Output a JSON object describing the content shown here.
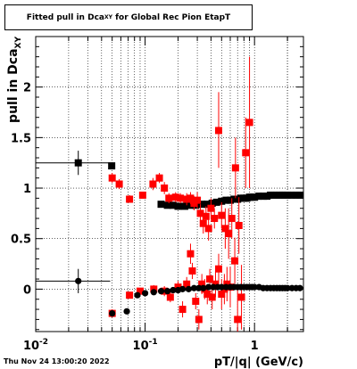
{
  "chart_data": {
    "type": "scatter",
    "title_main": "Fitted pull in Dca",
    "title_sub": "XY",
    "title_rest": " for Global Rec Pion EtapT",
    "ylabel_main": "pull in Dca",
    "ylabel_sub": "XY",
    "xlabel": "pT/|q| (GeV/c)",
    "xscale": "log",
    "xlim": [
      0.01,
      2.8
    ],
    "ylim": [
      -0.42,
      2.5
    ],
    "grid": true,
    "x_tick_labels": [
      {
        "x": 0.01,
        "base": "10",
        "exp": "-2"
      },
      {
        "x": 0.1,
        "base": "10",
        "exp": "-1"
      },
      {
        "x": 1,
        "base": "1",
        "exp": ""
      }
    ],
    "y_ticks": [
      0,
      0.5,
      1,
      1.5,
      2
    ],
    "y_tick_labels": [
      "0",
      "0.5",
      "1",
      "1.5",
      "2"
    ],
    "series": [
      {
        "color": "#000000",
        "marker": "square",
        "points": [
          {
            "x": 0.0245,
            "y": 1.25,
            "xlo": 0.01,
            "xhi": 0.048,
            "ylo": 1.13,
            "yhi": 1.37
          },
          {
            "x": 0.0495,
            "y": 1.22,
            "xlo": 0.048,
            "xhi": 0.051,
            "ylo": 1.19,
            "yhi": 1.25
          },
          {
            "x": 0.14,
            "y": 0.84
          },
          {
            "x": 0.16,
            "y": 0.83
          },
          {
            "x": 0.18,
            "y": 0.83
          },
          {
            "x": 0.2,
            "y": 0.82
          },
          {
            "x": 0.23,
            "y": 0.82
          },
          {
            "x": 0.26,
            "y": 0.83
          },
          {
            "x": 0.29,
            "y": 0.83
          },
          {
            "x": 0.33,
            "y": 0.84
          },
          {
            "x": 0.37,
            "y": 0.84
          },
          {
            "x": 0.41,
            "y": 0.85
          },
          {
            "x": 0.45,
            "y": 0.86
          },
          {
            "x": 0.5,
            "y": 0.87
          },
          {
            "x": 0.55,
            "y": 0.88
          },
          {
            "x": 0.6,
            "y": 0.88
          },
          {
            "x": 0.65,
            "y": 0.89
          },
          {
            "x": 0.7,
            "y": 0.89
          },
          {
            "x": 0.75,
            "y": 0.9
          },
          {
            "x": 0.8,
            "y": 0.9
          },
          {
            "x": 0.85,
            "y": 0.9
          },
          {
            "x": 0.9,
            "y": 0.91
          },
          {
            "x": 0.95,
            "y": 0.91
          },
          {
            "x": 1.0,
            "y": 0.91
          },
          {
            "x": 1.1,
            "y": 0.92
          },
          {
            "x": 1.2,
            "y": 0.92
          },
          {
            "x": 1.3,
            "y": 0.92
          },
          {
            "x": 1.4,
            "y": 0.93
          },
          {
            "x": 1.5,
            "y": 0.93
          },
          {
            "x": 1.6,
            "y": 0.93
          },
          {
            "x": 1.7,
            "y": 0.93
          },
          {
            "x": 1.8,
            "y": 0.93
          },
          {
            "x": 1.9,
            "y": 0.93
          },
          {
            "x": 2.0,
            "y": 0.93
          },
          {
            "x": 2.2,
            "y": 0.93
          },
          {
            "x": 2.4,
            "y": 0.93
          },
          {
            "x": 2.6,
            "y": 0.93
          }
        ]
      },
      {
        "color": "#ff0000",
        "marker": "square",
        "points": [
          {
            "x": 0.05,
            "y": 1.1,
            "ylo": 1.05,
            "yhi": 1.15
          },
          {
            "x": 0.058,
            "y": 1.04,
            "ylo": 0.99,
            "yhi": 1.09
          },
          {
            "x": 0.072,
            "y": 0.89,
            "ylo": 0.86,
            "yhi": 0.93
          },
          {
            "x": 0.095,
            "y": 0.93,
            "ylo": 0.9,
            "yhi": 0.96
          },
          {
            "x": 0.118,
            "y": 1.04,
            "ylo": 0.98,
            "yhi": 1.1
          },
          {
            "x": 0.135,
            "y": 1.1,
            "ylo": 1.05,
            "yhi": 1.15
          },
          {
            "x": 0.15,
            "y": 1.0,
            "ylo": 0.94,
            "yhi": 1.06
          },
          {
            "x": 0.165,
            "y": 0.9,
            "ylo": 0.85,
            "yhi": 0.95
          },
          {
            "x": 0.19,
            "y": 0.91,
            "ylo": 0.86,
            "yhi": 0.96
          },
          {
            "x": 0.21,
            "y": 0.9,
            "ylo": 0.85,
            "yhi": 0.95
          },
          {
            "x": 0.24,
            "y": 0.89,
            "ylo": 0.83,
            "yhi": 0.95
          },
          {
            "x": 0.26,
            "y": 0.9,
            "ylo": 0.84,
            "yhi": 0.96
          },
          {
            "x": 0.28,
            "y": 0.85,
            "ylo": 0.78,
            "yhi": 0.92
          },
          {
            "x": 0.3,
            "y": 0.88,
            "ylo": 0.8,
            "yhi": 0.96
          },
          {
            "x": 0.32,
            "y": 0.75,
            "ylo": 0.66,
            "yhi": 0.84
          },
          {
            "x": 0.34,
            "y": 0.65,
            "ylo": 0.55,
            "yhi": 0.75
          },
          {
            "x": 0.36,
            "y": 0.72,
            "ylo": 0.62,
            "yhi": 0.82
          },
          {
            "x": 0.38,
            "y": 0.6,
            "ylo": 0.48,
            "yhi": 0.72
          },
          {
            "x": 0.4,
            "y": 0.8,
            "ylo": 0.7,
            "yhi": 0.9
          },
          {
            "x": 0.43,
            "y": 0.7,
            "ylo": 0.6,
            "yhi": 0.8
          },
          {
            "x": 0.47,
            "y": 1.57,
            "ylo": 1.2,
            "yhi": 1.95
          },
          {
            "x": 0.5,
            "y": 0.73,
            "ylo": 0.6,
            "yhi": 0.86
          },
          {
            "x": 0.54,
            "y": 0.6,
            "ylo": 0.4,
            "yhi": 0.8
          },
          {
            "x": 0.58,
            "y": 0.55,
            "ylo": 0.3,
            "yhi": 0.8
          },
          {
            "x": 0.62,
            "y": 0.7,
            "ylo": 0.5,
            "yhi": 0.9
          },
          {
            "x": 0.67,
            "y": 1.2,
            "ylo": 0.9,
            "yhi": 1.5
          },
          {
            "x": 0.72,
            "y": 0.63,
            "ylo": 0.35,
            "yhi": 0.91
          },
          {
            "x": 0.83,
            "y": 1.35,
            "ylo": 1.0,
            "yhi": 1.7
          },
          {
            "x": 0.9,
            "y": 1.65,
            "ylo": 1.0,
            "yhi": 2.3
          },
          {
            "x": 0.05,
            "y": -0.24,
            "ylo": -0.28,
            "yhi": -0.2
          },
          {
            "x": 0.072,
            "y": -0.06,
            "ylo": -0.09,
            "yhi": -0.03
          },
          {
            "x": 0.09,
            "y": -0.02,
            "ylo": -0.05,
            "yhi": 0.01
          },
          {
            "x": 0.12,
            "y": 0.0,
            "ylo": -0.04,
            "yhi": 0.04
          },
          {
            "x": 0.15,
            "y": -0.02,
            "ylo": -0.07,
            "yhi": 0.03
          },
          {
            "x": 0.17,
            "y": -0.08,
            "ylo": -0.13,
            "yhi": -0.03
          },
          {
            "x": 0.2,
            "y": 0.02,
            "ylo": -0.04,
            "yhi": 0.08
          },
          {
            "x": 0.22,
            "y": -0.2,
            "ylo": -0.28,
            "yhi": -0.12
          },
          {
            "x": 0.24,
            "y": 0.05,
            "ylo": -0.02,
            "yhi": 0.12
          },
          {
            "x": 0.26,
            "y": 0.35,
            "ylo": 0.25,
            "yhi": 0.45
          },
          {
            "x": 0.27,
            "y": 0.18,
            "ylo": 0.1,
            "yhi": 0.26
          },
          {
            "x": 0.29,
            "y": -0.12,
            "ylo": -0.2,
            "yhi": -0.04
          },
          {
            "x": 0.31,
            "y": -0.3,
            "ylo": -0.4,
            "yhi": -0.2
          },
          {
            "x": 0.33,
            "y": 0.05,
            "ylo": -0.05,
            "yhi": 0.15
          },
          {
            "x": 0.35,
            "y": 0.0,
            "ylo": -0.1,
            "yhi": 0.1
          },
          {
            "x": 0.37,
            "y": -0.05,
            "ylo": -0.15,
            "yhi": 0.05
          },
          {
            "x": 0.39,
            "y": 0.1,
            "ylo": 0.0,
            "yhi": 0.2
          },
          {
            "x": 0.41,
            "y": -0.08,
            "ylo": -0.2,
            "yhi": 0.04
          },
          {
            "x": 0.44,
            "y": 0.05,
            "ylo": -0.08,
            "yhi": 0.18
          },
          {
            "x": 0.47,
            "y": 0.2,
            "ylo": 0.05,
            "yhi": 0.35
          },
          {
            "x": 0.5,
            "y": -0.05,
            "ylo": -0.2,
            "yhi": 0.1
          },
          {
            "x": 0.53,
            "y": 0.0,
            "ylo": -0.15,
            "yhi": 0.15
          },
          {
            "x": 0.56,
            "y": 0.05,
            "ylo": -0.12,
            "yhi": 0.22
          },
          {
            "x": 0.6,
            "y": 0.02,
            "ylo": -0.18,
            "yhi": 0.22
          },
          {
            "x": 0.66,
            "y": 0.28,
            "ylo": 0.05,
            "yhi": 0.51
          },
          {
            "x": 0.7,
            "y": -0.3,
            "ylo": -0.6,
            "yhi": 0.0
          },
          {
            "x": 0.76,
            "y": -0.08,
            "ylo": -0.4,
            "yhi": 0.24
          }
        ]
      },
      {
        "color": "#000000",
        "marker": "circle",
        "points": [
          {
            "x": 0.0245,
            "y": 0.08,
            "xlo": 0.01,
            "xhi": 0.048,
            "ylo": -0.04,
            "yhi": 0.2
          },
          {
            "x": 0.05,
            "y": -0.24
          },
          {
            "x": 0.068,
            "y": -0.22
          },
          {
            "x": 0.085,
            "y": -0.06
          },
          {
            "x": 0.1,
            "y": -0.04
          },
          {
            "x": 0.12,
            "y": -0.03
          },
          {
            "x": 0.14,
            "y": -0.02
          },
          {
            "x": 0.16,
            "y": -0.02
          },
          {
            "x": 0.18,
            "y": -0.01
          },
          {
            "x": 0.2,
            "y": -0.01
          },
          {
            "x": 0.22,
            "y": 0.0
          },
          {
            "x": 0.25,
            "y": 0.0
          },
          {
            "x": 0.28,
            "y": 0.01
          },
          {
            "x": 0.31,
            "y": 0.01
          },
          {
            "x": 0.34,
            "y": 0.01
          },
          {
            "x": 0.38,
            "y": 0.02
          },
          {
            "x": 0.42,
            "y": 0.02
          },
          {
            "x": 0.46,
            "y": 0.02
          },
          {
            "x": 0.5,
            "y": 0.02
          },
          {
            "x": 0.55,
            "y": 0.02
          },
          {
            "x": 0.6,
            "y": 0.02
          },
          {
            "x": 0.65,
            "y": 0.02
          },
          {
            "x": 0.7,
            "y": 0.02
          },
          {
            "x": 0.75,
            "y": 0.02
          },
          {
            "x": 0.8,
            "y": 0.02
          },
          {
            "x": 0.85,
            "y": 0.02
          },
          {
            "x": 0.9,
            "y": 0.02
          },
          {
            "x": 0.95,
            "y": 0.02
          },
          {
            "x": 1.0,
            "y": 0.02
          },
          {
            "x": 1.1,
            "y": 0.02
          },
          {
            "x": 1.2,
            "y": 0.01
          },
          {
            "x": 1.3,
            "y": 0.01
          },
          {
            "x": 1.4,
            "y": 0.01
          },
          {
            "x": 1.5,
            "y": 0.01
          },
          {
            "x": 1.6,
            "y": 0.01
          },
          {
            "x": 1.7,
            "y": 0.01
          },
          {
            "x": 1.8,
            "y": 0.01
          },
          {
            "x": 1.9,
            "y": 0.01
          },
          {
            "x": 2.0,
            "y": 0.01
          },
          {
            "x": 2.2,
            "y": 0.01
          },
          {
            "x": 2.4,
            "y": 0.01
          },
          {
            "x": 2.6,
            "y": 0.01
          }
        ]
      }
    ]
  },
  "footer": {
    "timestamp": "Thu Nov 24 13:00:20 2022"
  }
}
